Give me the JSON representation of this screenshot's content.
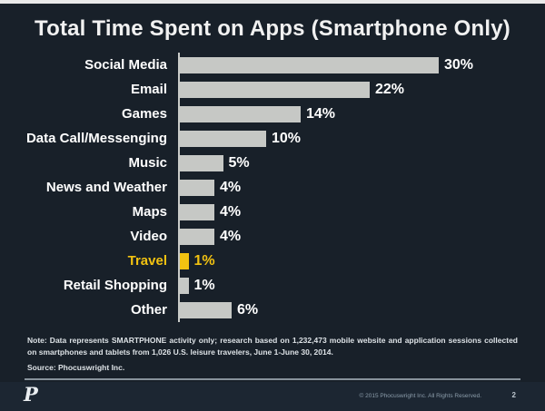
{
  "title": "Total Time Spent on Apps (Smartphone Only)",
  "chart_data": {
    "type": "bar",
    "orientation": "horizontal",
    "title": "Total Time Spent on Apps (Smartphone Only)",
    "categories": [
      "Social Media",
      "Email",
      "Games",
      "Data Call/Messenging",
      "Music",
      "News and Weather",
      "Maps",
      "Video",
      "Travel",
      "Retail Shopping",
      "Other"
    ],
    "values": [
      30,
      22,
      14,
      10,
      5,
      4,
      4,
      4,
      1,
      1,
      6
    ],
    "value_suffix": "%",
    "xlim": [
      0,
      32
    ],
    "grid": false,
    "legend": "none",
    "highlight_category": "Travel",
    "colors": {
      "bar": "#c6c8c5",
      "highlight": "#f2c211",
      "label": "#ffffff",
      "background": "#182029",
      "axis_line": "#c9cbc8"
    }
  },
  "note": {
    "text": "Note: Data represents SMARTPHONE activity only; research based on 1,232,473 mobile website and application sessions collected on smartphones and tablets from 1,026 U.S. leisure travelers, June 1-June 30, 2014.",
    "source": "Source: Phocuswright Inc."
  },
  "footer": {
    "logo_letter": "P",
    "copyright": "© 2015 Phocuswright Inc. All Rights Reserved.",
    "page_number": "2"
  }
}
